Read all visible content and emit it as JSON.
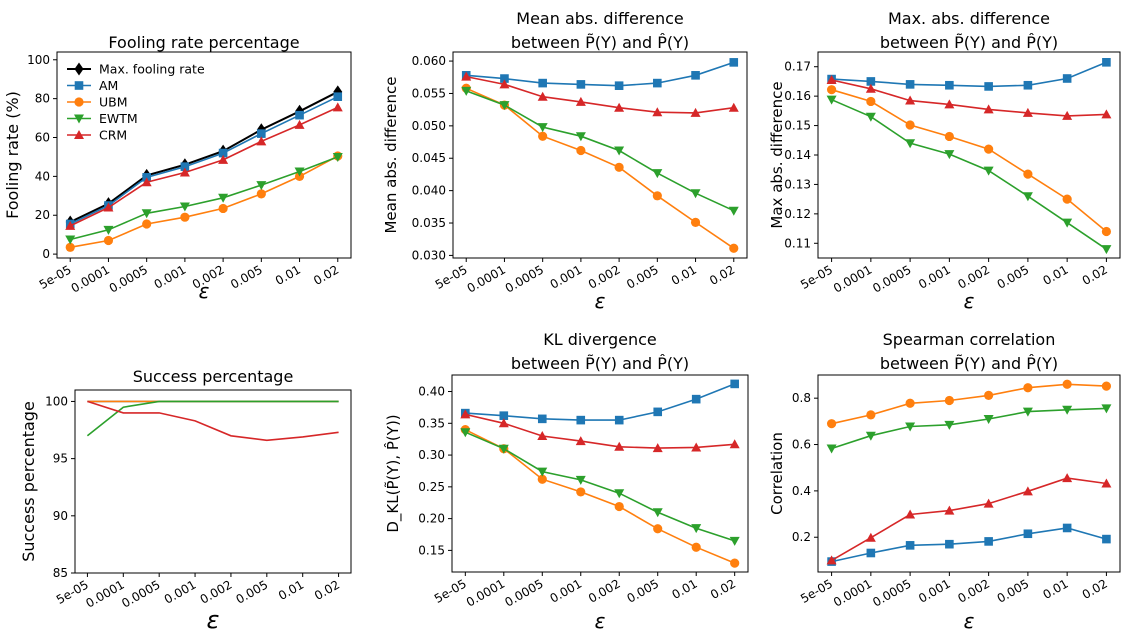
{
  "colors": {
    "max": "#000000",
    "AM": "#1f77b4",
    "UBM": "#ff7f0e",
    "EWTM": "#2ca02c",
    "CRM": "#d62728"
  },
  "chart_data": [
    {
      "type": "line",
      "title": [
        "Fooling rate percentage"
      ],
      "xlabel": "ε",
      "ylabel": "Fooling rate (%)",
      "categories": [
        "5e-05",
        "0.0001",
        "0.0005",
        "0.001",
        "0.002",
        "0.005",
        "0.01",
        "0.02"
      ],
      "ylim": [
        -2,
        104
      ],
      "yticks": [
        0,
        20,
        40,
        60,
        80,
        100
      ],
      "legend": "top-left",
      "series": [
        {
          "name": "Max. fooling rate",
          "key": "max",
          "marker": "diamond",
          "values": [
            16.5,
            26,
            40.5,
            46,
            53,
            64,
            73.5,
            83.5
          ]
        },
        {
          "name": "AM",
          "key": "AM",
          "marker": "square",
          "values": [
            15.5,
            25,
            39.5,
            45,
            52,
            62,
            71.5,
            81
          ]
        },
        {
          "name": "UBM",
          "key": "UBM",
          "marker": "circle",
          "values": [
            3.5,
            7,
            15.5,
            19,
            23.5,
            31,
            40,
            50.5
          ]
        },
        {
          "name": "EWTM",
          "key": "EWTM",
          "marker": "tri-down",
          "values": [
            7.5,
            12.5,
            21,
            24.5,
            29,
            35.5,
            42.5,
            50
          ]
        },
        {
          "name": "CRM",
          "key": "CRM",
          "marker": "tri-up",
          "values": [
            14.5,
            24,
            37,
            42,
            48.5,
            58,
            66.5,
            75.5
          ]
        }
      ]
    },
    {
      "type": "line",
      "title": [
        "Mean abs. difference",
        "between P̃(Y) and P̂(Y)"
      ],
      "xlabel": "ε",
      "ylabel": "Mean abs. difference",
      "categories": [
        "5e-05",
        "0.0001",
        "0.0005",
        "0.001",
        "0.002",
        "0.005",
        "0.01",
        "0.02"
      ],
      "ylim": [
        0.0296,
        0.0614
      ],
      "yticks": [
        0.03,
        0.035,
        0.04,
        0.045,
        0.05,
        0.055,
        0.06
      ],
      "series": [
        {
          "key": "AM",
          "marker": "square",
          "values": [
            0.0578,
            0.0573,
            0.0566,
            0.0564,
            0.0562,
            0.0566,
            0.0578,
            0.0598
          ]
        },
        {
          "key": "UBM",
          "marker": "circle",
          "values": [
            0.0558,
            0.0532,
            0.0484,
            0.0462,
            0.0436,
            0.0392,
            0.0351,
            0.0311
          ]
        },
        {
          "key": "EWTM",
          "marker": "tri-down",
          "values": [
            0.0554,
            0.0532,
            0.0498,
            0.0484,
            0.0462,
            0.0427,
            0.0396,
            0.0369
          ]
        },
        {
          "key": "CRM",
          "marker": "tri-up",
          "values": [
            0.0576,
            0.0564,
            0.0545,
            0.0537,
            0.0528,
            0.0521,
            0.052,
            0.0528
          ]
        }
      ]
    },
    {
      "type": "line",
      "title": [
        "Max. abs. difference",
        "between P̃(Y) and P̂(Y)"
      ],
      "xlabel": "ε",
      "ylabel": "Max abs. difference",
      "categories": [
        "5e-05",
        "0.0001",
        "0.0005",
        "0.001",
        "0.002",
        "0.005",
        "0.01",
        "0.02"
      ],
      "ylim": [
        0.105,
        0.175
      ],
      "yticks": [
        0.11,
        0.12,
        0.13,
        0.14,
        0.15,
        0.16,
        0.17
      ],
      "series": [
        {
          "key": "AM",
          "marker": "square",
          "values": [
            0.1658,
            0.165,
            0.164,
            0.1637,
            0.1633,
            0.1637,
            0.166,
            0.1715
          ]
        },
        {
          "key": "UBM",
          "marker": "circle",
          "values": [
            0.1622,
            0.1582,
            0.1502,
            0.1463,
            0.142,
            0.1335,
            0.125,
            0.114
          ]
        },
        {
          "key": "EWTM",
          "marker": "tri-down",
          "values": [
            0.1588,
            0.153,
            0.144,
            0.1403,
            0.1347,
            0.126,
            0.117,
            0.108
          ]
        },
        {
          "key": "CRM",
          "marker": "tri-up",
          "values": [
            0.1655,
            0.1625,
            0.1585,
            0.1572,
            0.1555,
            0.1543,
            0.1533,
            0.1538
          ]
        }
      ]
    },
    {
      "type": "line",
      "title": [
        "Success percentage"
      ],
      "xlabel": "ε",
      "ylabel": "Success percentage",
      "categories": [
        "5e-05",
        "0.0001",
        "0.0005",
        "0.001",
        "0.002",
        "0.005",
        "0.01",
        "0.02"
      ],
      "ylim": [
        85,
        101
      ],
      "yticks": [
        85,
        90,
        95,
        100
      ],
      "series": [
        {
          "key": "AM",
          "marker": "none",
          "values": [
            100,
            100,
            100,
            100,
            100,
            100,
            100,
            100
          ]
        },
        {
          "key": "UBM",
          "marker": "none",
          "values": [
            100,
            100,
            100,
            100,
            100,
            100,
            100,
            100
          ]
        },
        {
          "key": "EWTM",
          "marker": "none",
          "values": [
            97,
            99.5,
            100,
            100,
            100,
            100,
            100,
            100
          ]
        },
        {
          "key": "CRM",
          "marker": "none",
          "values": [
            100,
            99,
            99,
            98.3,
            97,
            96.6,
            96.9,
            97.3
          ]
        }
      ]
    },
    {
      "type": "line",
      "title": [
        "KL divergence",
        "between P̃(Y) and P̂(Y)"
      ],
      "xlabel": "ε",
      "ylabel": "D_KL(P̃(Y), P̂(Y))",
      "categories": [
        "5e-05",
        "0.0001",
        "0.0005",
        "0.001",
        "0.002",
        "0.005",
        "0.01",
        "0.02"
      ],
      "ylim": [
        0.116,
        0.426
      ],
      "yticks": [
        0.15,
        0.2,
        0.25,
        0.3,
        0.35,
        0.4
      ],
      "series": [
        {
          "key": "AM",
          "marker": "square",
          "values": [
            0.366,
            0.362,
            0.357,
            0.355,
            0.355,
            0.368,
            0.388,
            0.412
          ]
        },
        {
          "key": "UBM",
          "marker": "circle",
          "values": [
            0.34,
            0.31,
            0.262,
            0.242,
            0.219,
            0.184,
            0.155,
            0.13
          ]
        },
        {
          "key": "EWTM",
          "marker": "tri-down",
          "values": [
            0.336,
            0.31,
            0.274,
            0.261,
            0.24,
            0.21,
            0.185,
            0.165
          ]
        },
        {
          "key": "CRM",
          "marker": "tri-up",
          "values": [
            0.364,
            0.35,
            0.33,
            0.322,
            0.313,
            0.311,
            0.312,
            0.317
          ]
        }
      ]
    },
    {
      "type": "line",
      "title": [
        "Spearman correlation",
        "between P̃(Y) and P̂(Y)"
      ],
      "xlabel": "ε",
      "ylabel": "Correlation",
      "categories": [
        "5e-05",
        "0.0001",
        "0.0005",
        "0.001",
        "0.002",
        "0.005",
        "0.01",
        "0.02"
      ],
      "ylim": [
        0.05,
        0.9
      ],
      "yticks": [
        0.2,
        0.4,
        0.6,
        0.8
      ],
      "series": [
        {
          "key": "AM",
          "marker": "square",
          "values": [
            0.095,
            0.132,
            0.165,
            0.17,
            0.182,
            0.215,
            0.24,
            0.192
          ]
        },
        {
          "key": "UBM",
          "marker": "circle",
          "values": [
            0.69,
            0.728,
            0.778,
            0.79,
            0.812,
            0.845,
            0.86,
            0.852
          ]
        },
        {
          "key": "EWTM",
          "marker": "tri-down",
          "values": [
            0.583,
            0.638,
            0.678,
            0.685,
            0.71,
            0.742,
            0.75,
            0.756
          ]
        },
        {
          "key": "CRM",
          "marker": "tri-up",
          "values": [
            0.1,
            0.198,
            0.298,
            0.315,
            0.345,
            0.398,
            0.455,
            0.432
          ]
        }
      ]
    }
  ]
}
